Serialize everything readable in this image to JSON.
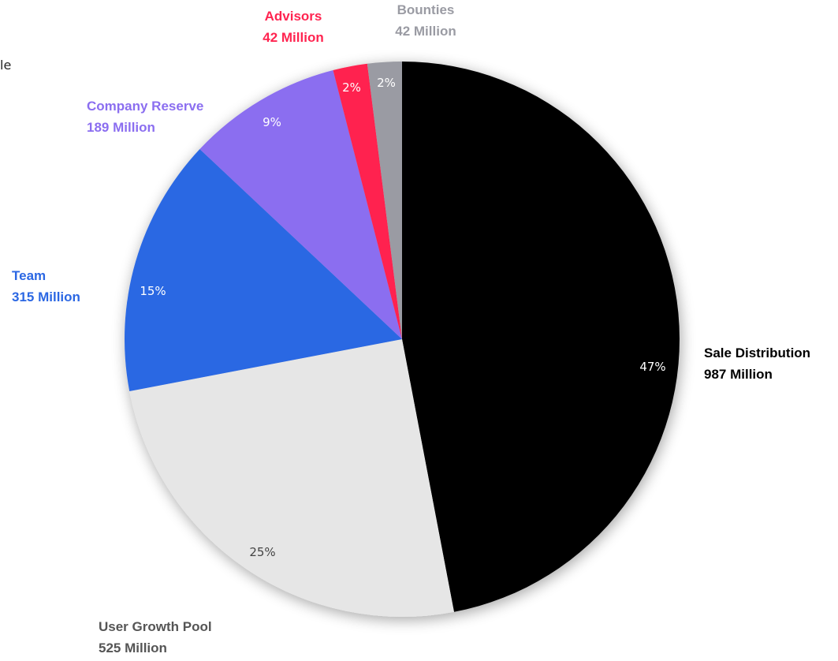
{
  "stray_text": "le",
  "chart_data": {
    "type": "pie",
    "title": "",
    "start": "12 o'clock",
    "direction": "clockwise",
    "slices": [
      {
        "label": "Sale Distribution",
        "amount": "987 Million",
        "percent_label": "47%",
        "value": 987,
        "color": "#000000",
        "label_color": "#000000",
        "pct_color": "#ffffff"
      },
      {
        "label": "User Growth Pool",
        "amount": "525 Million",
        "percent_label": "25%",
        "value": 525,
        "color": "#e6e6e6",
        "label_color": "#555555",
        "pct_color": "#444444"
      },
      {
        "label": "Team",
        "amount": "315 Million",
        "percent_label": "15%",
        "value": 315,
        "color": "#2b67e3",
        "label_color": "#2b67e3",
        "pct_color": "#ffffff"
      },
      {
        "label": "Company Reserve",
        "amount": "189 Million",
        "percent_label": "9%",
        "value": 189,
        "color": "#8b6ef0",
        "label_color": "#8b6ef0",
        "pct_color": "#ffffff"
      },
      {
        "label": "Advisors",
        "amount": "42 Million",
        "percent_label": "2%",
        "value": 42,
        "color": "#ff2450",
        "label_color": "#ff2450",
        "pct_color": "#ffffff"
      },
      {
        "label": "Bounties",
        "amount": "42 Million",
        "percent_label": "2%",
        "value": 42,
        "color": "#9a9ba3",
        "label_color": "#9a9ba3",
        "pct_color": "#ffffff"
      }
    ]
  }
}
